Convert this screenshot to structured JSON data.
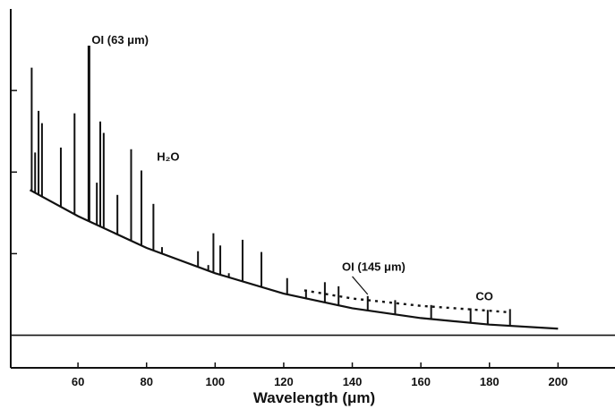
{
  "chart_data": {
    "type": "line",
    "title": "",
    "xlabel": "Wavelength (μm)",
    "ylabel": "",
    "xlim": [
      43,
      208
    ],
    "ylim": [
      -0.4,
      4.0
    ],
    "grid": false,
    "x_ticks": [
      "60",
      "80",
      "100",
      "120",
      "140",
      "160",
      "180",
      "200"
    ],
    "continuum": [
      [
        46,
        1.78
      ],
      [
        60,
        1.46
      ],
      [
        80,
        1.07
      ],
      [
        100,
        0.76
      ],
      [
        120,
        0.51
      ],
      [
        140,
        0.33
      ],
      [
        160,
        0.21
      ],
      [
        180,
        0.13
      ],
      [
        200,
        0.08
      ]
    ],
    "dotted_continuum": [
      [
        126,
        0.55
      ],
      [
        140,
        0.45
      ],
      [
        160,
        0.36
      ],
      [
        180,
        0.3
      ],
      [
        186,
        0.28
      ]
    ],
    "lines": [
      {
        "x": 46.5,
        "peak": 3.28
      },
      {
        "x": 47.5,
        "peak": 2.24
      },
      {
        "x": 48.5,
        "peak": 2.75
      },
      {
        "x": 49.5,
        "peak": 2.6
      },
      {
        "x": 55,
        "peak": 2.3
      },
      {
        "x": 59,
        "peak": 2.72
      },
      {
        "x": 63.2,
        "peak": 3.55
      },
      {
        "x": 65.5,
        "peak": 1.87
      },
      {
        "x": 66.5,
        "peak": 2.62
      },
      {
        "x": 67.5,
        "peak": 2.48
      },
      {
        "x": 71.5,
        "peak": 1.72
      },
      {
        "x": 75.5,
        "peak": 2.28
      },
      {
        "x": 78.5,
        "peak": 2.02
      },
      {
        "x": 82,
        "peak": 1.61
      },
      {
        "x": 84.5,
        "peak": 1.08
      },
      {
        "x": 95,
        "peak": 1.03
      },
      {
        "x": 98,
        "peak": 0.86
      },
      {
        "x": 99.5,
        "peak": 1.25
      },
      {
        "x": 101.5,
        "peak": 1.1
      },
      {
        "x": 104,
        "peak": 0.76
      },
      {
        "x": 108,
        "peak": 1.17
      },
      {
        "x": 113.5,
        "peak": 1.02
      },
      {
        "x": 121,
        "peak": 0.7
      },
      {
        "x": 126.5,
        "peak": 0.56
      },
      {
        "x": 132,
        "peak": 0.65
      },
      {
        "x": 136,
        "peak": 0.6
      },
      {
        "x": 144.5,
        "peak": 0.48
      },
      {
        "x": 152.5,
        "peak": 0.43
      },
      {
        "x": 163,
        "peak": 0.37
      },
      {
        "x": 174.5,
        "peak": 0.33
      },
      {
        "x": 179.5,
        "peak": 0.31
      },
      {
        "x": 186,
        "peak": 0.32
      }
    ],
    "annotations": [
      {
        "text": "OI (63 μm)",
        "x": 64,
        "y": 3.57
      },
      {
        "text": "H₂O",
        "x": 83,
        "y": 2.14
      },
      {
        "text": "OI (145 μm)",
        "x": 137,
        "y": 0.79
      },
      {
        "text": "CO",
        "x": 176,
        "y": 0.43
      }
    ]
  }
}
